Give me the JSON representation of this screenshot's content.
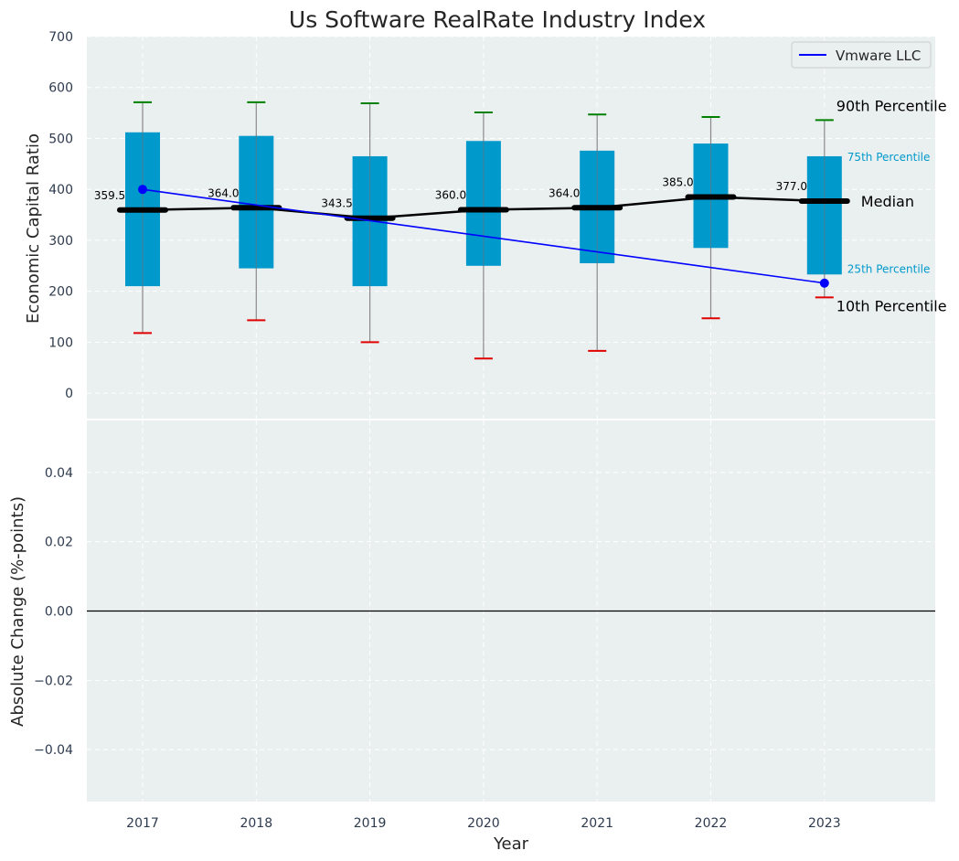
{
  "chart_data": {
    "type": "boxplot",
    "title": "Us Software RealRate Industry Index",
    "xlabel": "Year",
    "categories": [
      "2017",
      "2018",
      "2019",
      "2020",
      "2021",
      "2022",
      "2023"
    ],
    "top_panel": {
      "ylabel": "Economic Capital Ratio",
      "ylim": [
        -50,
        700
      ],
      "yticks": [
        "0",
        "100",
        "200",
        "300",
        "400",
        "500",
        "600",
        "700"
      ],
      "grid": true,
      "percentiles": {
        "p10": [
          118,
          143,
          100,
          68,
          83,
          147,
          188
        ],
        "p25": [
          210,
          245,
          210,
          250,
          255,
          285,
          233
        ],
        "median": [
          359.5,
          364.0,
          343.5,
          360.0,
          364.0,
          385.0,
          377.0
        ],
        "p75": [
          512,
          505,
          465,
          495,
          476,
          490,
          465
        ],
        "p90": [
          571,
          571,
          569,
          551,
          547,
          542,
          536
        ]
      },
      "median_labels": [
        "359.5",
        "364.0",
        "343.5",
        "360.0",
        "364.0",
        "385.0",
        "377.0"
      ],
      "series": [
        {
          "name": "Vmware LLC",
          "x": [
            "2017",
            "2023"
          ],
          "values": [
            400,
            216
          ],
          "color": "#0000ff"
        }
      ],
      "legend": {
        "position": "top-right",
        "entries": [
          "Vmware LLC"
        ]
      },
      "annotations": {
        "p90": "90th Percentile",
        "p75": "75th Percentile",
        "median": "Median",
        "p25": "25th Percentile",
        "p10": "10th Percentile"
      }
    },
    "bottom_panel": {
      "ylabel": "Absolute Change (%-points)",
      "ylim": [
        -0.055,
        0.055
      ],
      "yticks": [
        "0.04",
        "0.02",
        "0.00",
        "−0.02",
        "−0.04"
      ],
      "ytick_values": [
        0.04,
        0.02,
        0.0,
        -0.02,
        -0.04
      ],
      "grid": true
    },
    "colors": {
      "box": "#0099cc",
      "median_line": "#000000",
      "whisker_top": "#008000",
      "whisker_bottom": "#e00000",
      "panel_background": "#eaeff0",
      "series": "#0000ff",
      "annotation_small": "#0099cc"
    }
  }
}
